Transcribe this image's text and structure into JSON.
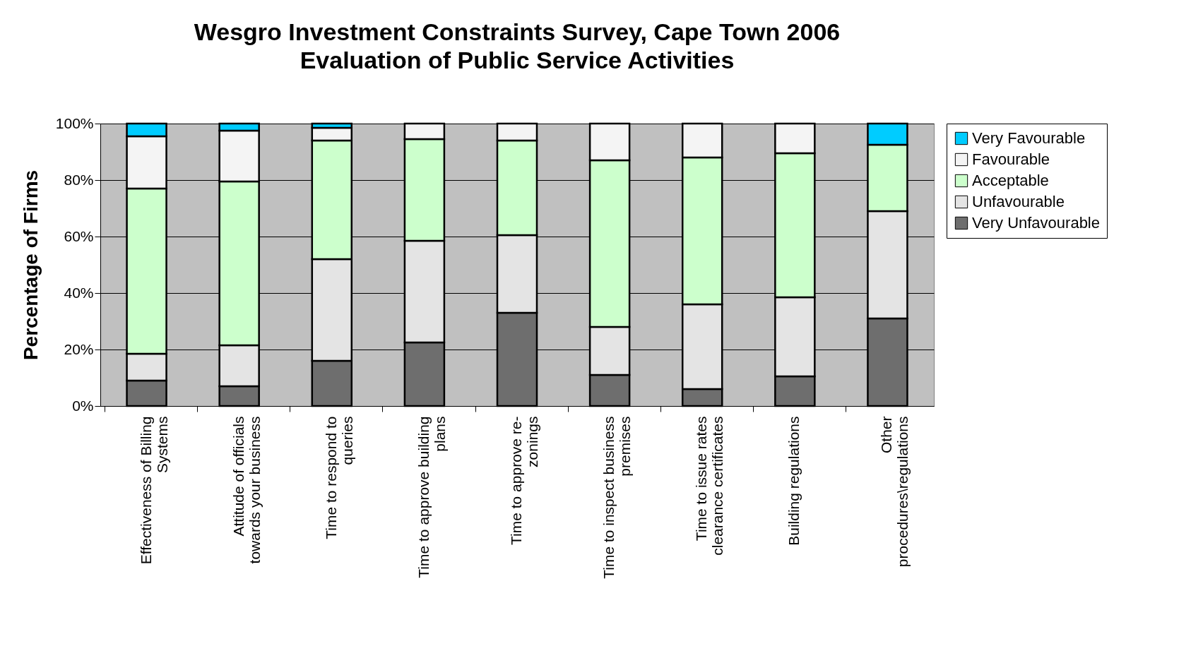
{
  "chart_data": {
    "type": "bar",
    "stacked": true,
    "title": "Wesgro Investment Constraints Survey, Cape Town 2006",
    "subtitle": "Evaluation of Public Service Activities",
    "ylabel": "Percentage of Firms",
    "categories": [
      "Effectiveness of Billing Systems",
      "Attitude of officials towards your business",
      "Time to respond to queries",
      "Time to approve building plans",
      "Time to approve re-zonings",
      "Time to inspect business premises",
      "Time to issue rates clearance certificates",
      "Building regulations",
      "Other procedures\\regulations"
    ],
    "series": [
      {
        "name": "Very Unfavourable",
        "color": "#6e6e6e",
        "values": [
          9,
          7,
          16,
          22.5,
          33,
          11,
          6,
          10.5,
          31
        ]
      },
      {
        "name": "Unfavourable",
        "color": "#e4e4e4",
        "values": [
          9.5,
          14.5,
          36,
          36,
          27.5,
          17,
          30,
          28,
          38
        ]
      },
      {
        "name": "Acceptable",
        "color": "#ccffcc",
        "values": [
          58.5,
          58,
          42,
          36,
          33.5,
          59,
          52,
          51,
          23.5
        ]
      },
      {
        "name": "Favourable",
        "color": "#f4f4f4",
        "values": [
          18.5,
          18,
          4.5,
          5.5,
          6,
          13,
          12,
          10.5,
          0
        ]
      },
      {
        "name": "Very Favourable",
        "color": "#00ccff",
        "values": [
          4.5,
          2.5,
          1.5,
          0,
          0,
          0,
          0,
          0,
          7.5
        ]
      }
    ],
    "ylim": [
      0,
      100
    ],
    "yticks": [
      {
        "value": 0,
        "label": "0%"
      },
      {
        "value": 20,
        "label": "20%"
      },
      {
        "value": 40,
        "label": "40%"
      },
      {
        "value": 60,
        "label": "60%"
      },
      {
        "value": 80,
        "label": "80%"
      },
      {
        "value": 100,
        "label": "100%"
      }
    ],
    "grid": "y",
    "legend": "right"
  }
}
